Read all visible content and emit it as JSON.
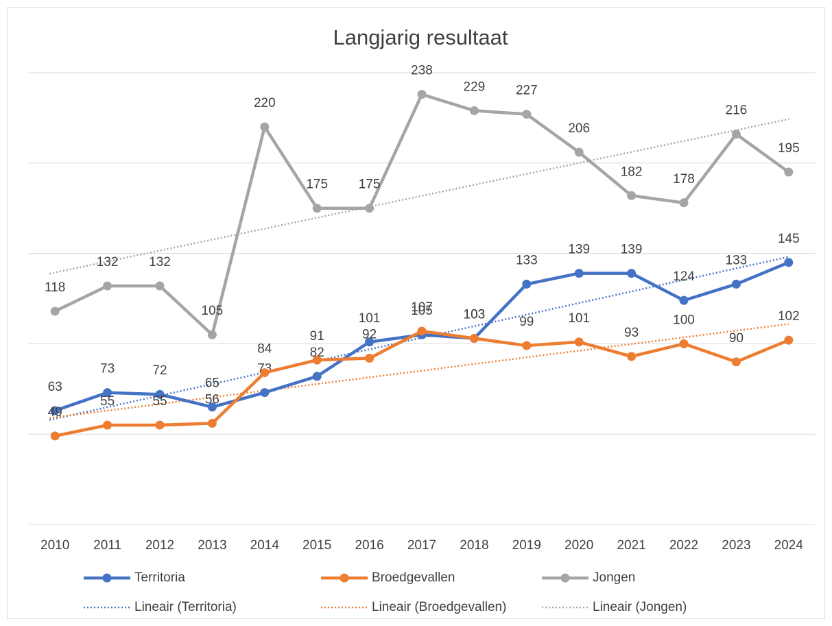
{
  "chart_data": {
    "type": "line",
    "title": "Langjarig resultaat",
    "categories": [
      "2010",
      "2011",
      "2012",
      "2013",
      "2014",
      "2015",
      "2016",
      "2017",
      "2018",
      "2019",
      "2020",
      "2021",
      "2022",
      "2023",
      "2024"
    ],
    "series": [
      {
        "name": "Territoria",
        "color": "#4472c4",
        "values": [
          63,
          73,
          72,
          65,
          73,
          82,
          101,
          105,
          103,
          133,
          139,
          139,
          124,
          133,
          145
        ],
        "trendline": "Lineair (Territoria)"
      },
      {
        "name": "Broedgevallen",
        "color": "#ed7d31",
        "values": [
          49,
          55,
          55,
          56,
          84,
          91,
          92,
          107,
          103,
          99,
          101,
          93,
          100,
          90,
          102
        ],
        "trendline": "Lineair (Broedgevallen)"
      },
      {
        "name": "Jongen",
        "color": "#a5a5a5",
        "values": [
          118,
          132,
          132,
          105,
          220,
          175,
          175,
          238,
          229,
          227,
          206,
          182,
          178,
          216,
          195
        ],
        "trendline": "Lineair (Jongen)"
      }
    ],
    "ylim": [
      0,
      250
    ],
    "yticks": [
      0,
      50,
      100,
      150,
      200,
      250
    ],
    "grid": true,
    "legend": "bottom"
  }
}
